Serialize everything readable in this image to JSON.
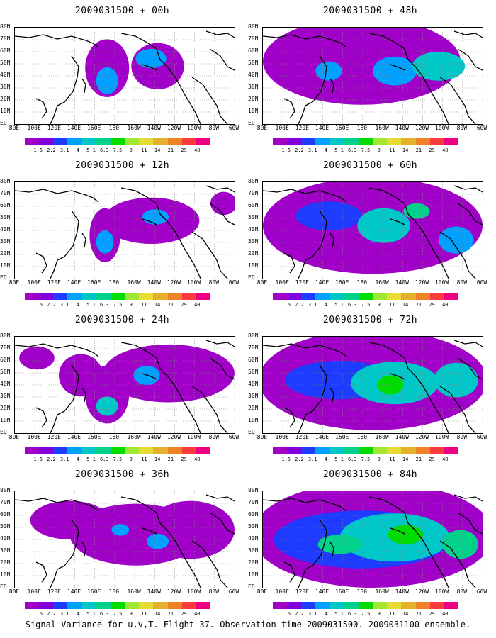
{
  "panels": [
    {
      "title": "2009031500 + 00h",
      "level": 0
    },
    {
      "title": "2009031500 + 48h",
      "level": 4
    },
    {
      "title": "2009031500 + 12h",
      "level": 1
    },
    {
      "title": "2009031500 + 60h",
      "level": 5
    },
    {
      "title": "2009031500 + 24h",
      "level": 2
    },
    {
      "title": "2009031500 + 72h",
      "level": 6
    },
    {
      "title": "2009031500 + 36h",
      "level": 3
    },
    {
      "title": "2009031500 + 84h",
      "level": 7
    }
  ],
  "lat_labels": [
    "80N",
    "70N",
    "60N",
    "50N",
    "40N",
    "30N",
    "20N",
    "10N",
    "EQ"
  ],
  "lon_labels": [
    "80E",
    "100E",
    "120E",
    "140E",
    "160E",
    "180",
    "160W",
    "140W",
    "120W",
    "100W",
    "80W",
    "60W"
  ],
  "colorbar": {
    "labels": [
      "1.6",
      "2.2",
      "3.1",
      "4",
      "5.1",
      "6.3",
      "7.5",
      "9",
      "11",
      "14",
      "21",
      "29",
      "40"
    ],
    "colors": [
      "#a000c8",
      "#8200dc",
      "#1e3cff",
      "#00a0ff",
      "#00c8c8",
      "#00d28c",
      "#00dc00",
      "#a0e632",
      "#e6dc32",
      "#e6af2d",
      "#f08228",
      "#fa3c3c",
      "#f00082"
    ]
  },
  "footer": "Signal Variance for u,v,T. Flight 37. Observation time 2009031500. 2009031100 ensemble."
}
